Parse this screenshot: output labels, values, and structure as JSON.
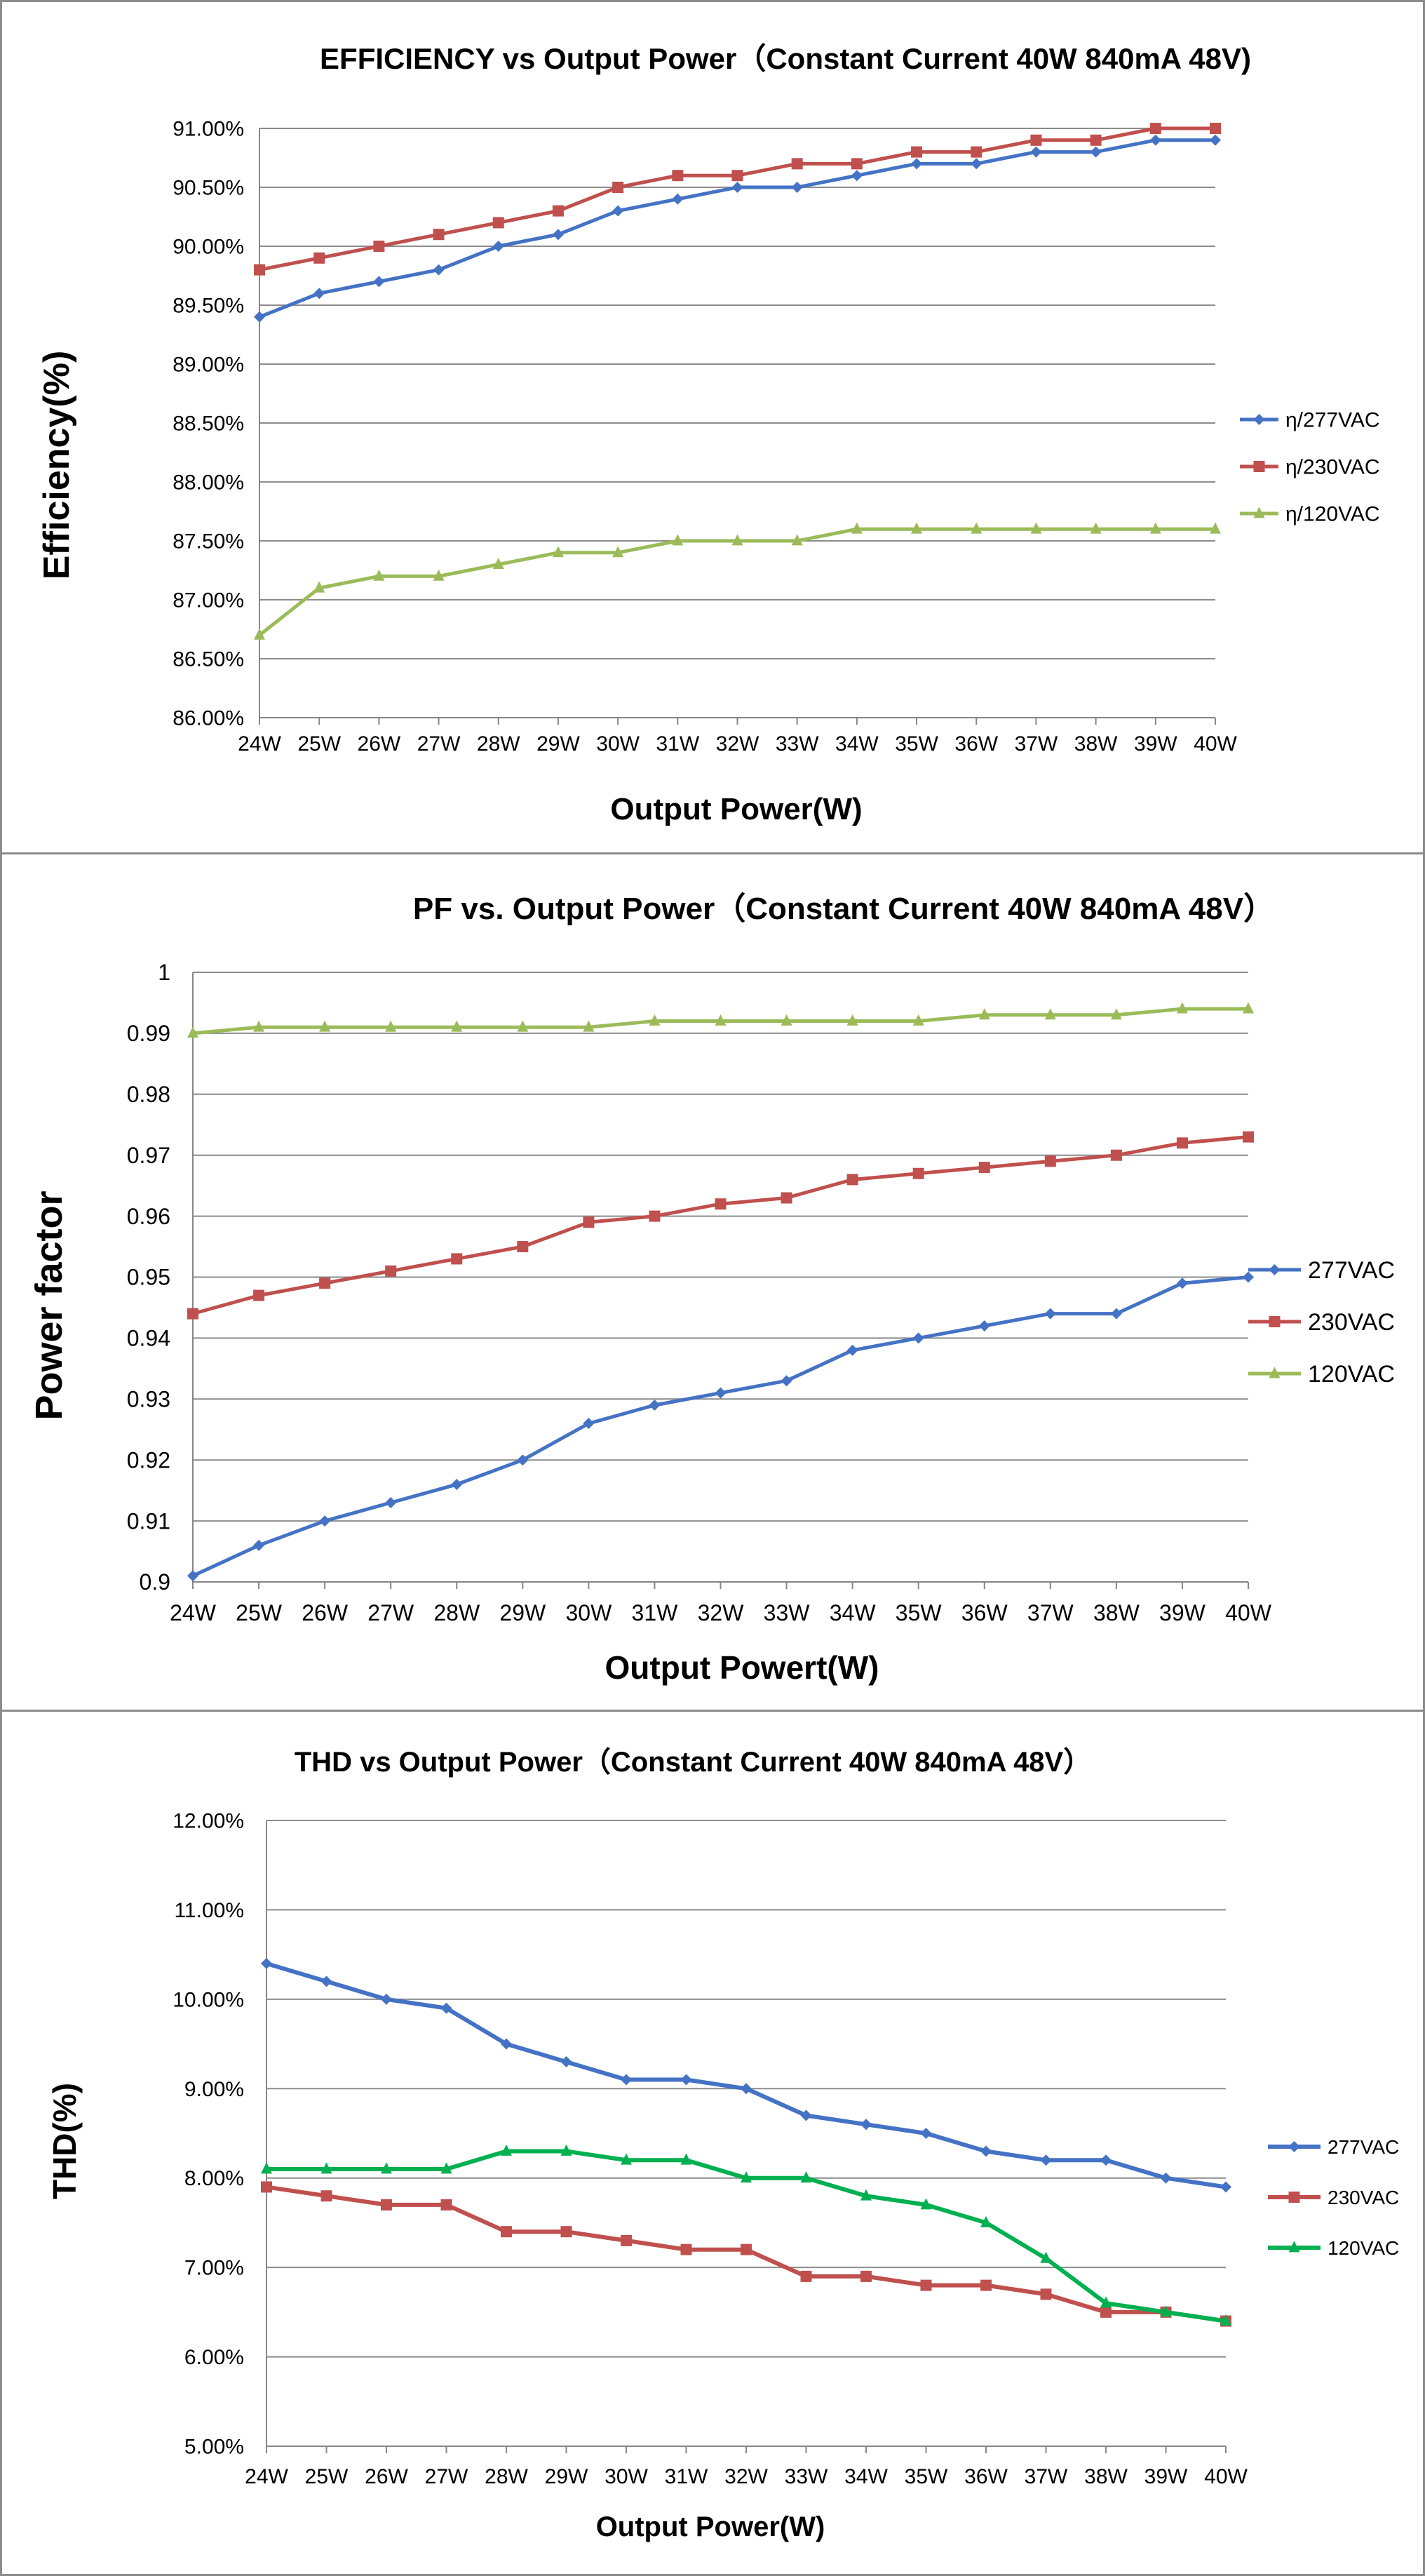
{
  "chart_data": [
    {
      "type": "line",
      "title": "EFFICIENCY vs Output Power（Constant Current 40W 840mA 48V)",
      "xlabel": "Output Power(W)",
      "ylabel": "Efficiency(%)",
      "categories": [
        "24W",
        "25W",
        "26W",
        "27W",
        "28W",
        "29W",
        "30W",
        "31W",
        "32W",
        "33W",
        "34W",
        "35W",
        "36W",
        "37W",
        "38W",
        "39W",
        "40W"
      ],
      "ylim": [
        86,
        91
      ],
      "yticks": [
        "86.00%",
        "86.50%",
        "87.00%",
        "87.50%",
        "88.00%",
        "88.50%",
        "89.00%",
        "89.50%",
        "90.00%",
        "90.50%",
        "91.00%"
      ],
      "grid": true,
      "legend_position": "right",
      "series": [
        {
          "name": "η/277VAC",
          "color": "#4472C4",
          "marker": "diamond",
          "values": [
            89.4,
            89.6,
            89.7,
            89.8,
            90.0,
            90.1,
            90.3,
            90.4,
            90.5,
            90.5,
            90.6,
            90.7,
            90.7,
            90.8,
            90.8,
            90.9,
            90.9
          ]
        },
        {
          "name": "η/230VAC",
          "color": "#C0504D",
          "marker": "square",
          "values": [
            89.8,
            89.9,
            90.0,
            90.1,
            90.2,
            90.3,
            90.5,
            90.6,
            90.6,
            90.7,
            90.7,
            90.8,
            90.8,
            90.9,
            90.9,
            91.0,
            91.0
          ]
        },
        {
          "name": "η/120VAC",
          "color": "#9BBB59",
          "marker": "triangle",
          "values": [
            86.7,
            87.1,
            87.2,
            87.2,
            87.3,
            87.4,
            87.4,
            87.5,
            87.5,
            87.5,
            87.6,
            87.6,
            87.6,
            87.6,
            87.6,
            87.6,
            87.6
          ]
        }
      ]
    },
    {
      "type": "line",
      "title": "PF vs. Output Power（Constant Current 40W 840mA 48V）",
      "xlabel": "Output Powert(W)",
      "ylabel": "Power factor",
      "categories": [
        "24W",
        "25W",
        "26W",
        "27W",
        "28W",
        "29W",
        "30W",
        "31W",
        "32W",
        "33W",
        "34W",
        "35W",
        "36W",
        "37W",
        "38W",
        "39W",
        "40W"
      ],
      "ylim": [
        0.9,
        1.0
      ],
      "yticks": [
        "0.9",
        "0.91",
        "0.92",
        "0.93",
        "0.94",
        "0.95",
        "0.96",
        "0.97",
        "0.98",
        "0.99",
        "1"
      ],
      "grid": true,
      "legend_position": "right",
      "series": [
        {
          "name": "277VAC",
          "color": "#4472C4",
          "marker": "diamond",
          "values": [
            0.901,
            0.906,
            0.91,
            0.913,
            0.916,
            0.92,
            0.926,
            0.929,
            0.931,
            0.933,
            0.938,
            0.94,
            0.942,
            0.944,
            0.944,
            0.949,
            0.95
          ]
        },
        {
          "name": "230VAC",
          "color": "#C0504D",
          "marker": "square",
          "values": [
            0.944,
            0.947,
            0.949,
            0.951,
            0.953,
            0.955,
            0.959,
            0.96,
            0.962,
            0.963,
            0.966,
            0.967,
            0.968,
            0.969,
            0.97,
            0.972,
            0.973
          ]
        },
        {
          "name": "120VAC",
          "color": "#9BBB59",
          "marker": "triangle",
          "values": [
            0.99,
            0.991,
            0.991,
            0.991,
            0.991,
            0.991,
            0.991,
            0.992,
            0.992,
            0.992,
            0.992,
            0.992,
            0.993,
            0.993,
            0.993,
            0.994,
            0.994
          ]
        }
      ]
    },
    {
      "type": "line",
      "title": "THD vs Output Power（Constant Current 40W  840mA 48V）",
      "xlabel": "Output Power(W)",
      "ylabel": "THD(%)",
      "categories": [
        "24W",
        "25W",
        "26W",
        "27W",
        "28W",
        "29W",
        "30W",
        "31W",
        "32W",
        "33W",
        "34W",
        "35W",
        "36W",
        "37W",
        "38W",
        "39W",
        "40W"
      ],
      "ylim": [
        5,
        12
      ],
      "yticks": [
        "5.00%",
        "6.00%",
        "7.00%",
        "8.00%",
        "9.00%",
        "10.00%",
        "11.00%",
        "12.00%"
      ],
      "grid": true,
      "legend_position": "right",
      "series": [
        {
          "name": "277VAC",
          "color": "#4472C4",
          "marker": "diamond",
          "values": [
            10.4,
            10.2,
            10.0,
            9.9,
            9.5,
            9.3,
            9.1,
            9.1,
            9.0,
            8.7,
            8.6,
            8.5,
            8.3,
            8.2,
            8.2,
            8.0,
            7.9
          ]
        },
        {
          "name": "230VAC",
          "color": "#C0504D",
          "marker": "square",
          "values": [
            7.9,
            7.8,
            7.7,
            7.7,
            7.4,
            7.4,
            7.3,
            7.2,
            7.2,
            6.9,
            6.9,
            6.8,
            6.8,
            6.7,
            6.5,
            6.5,
            6.4
          ]
        },
        {
          "name": "120VAC",
          "color": "#00B050",
          "marker": "triangle",
          "values": [
            8.1,
            8.1,
            8.1,
            8.1,
            8.3,
            8.3,
            8.2,
            8.2,
            8.0,
            8.0,
            7.8,
            7.7,
            7.5,
            7.1,
            6.6,
            6.5,
            6.4
          ]
        }
      ]
    }
  ]
}
